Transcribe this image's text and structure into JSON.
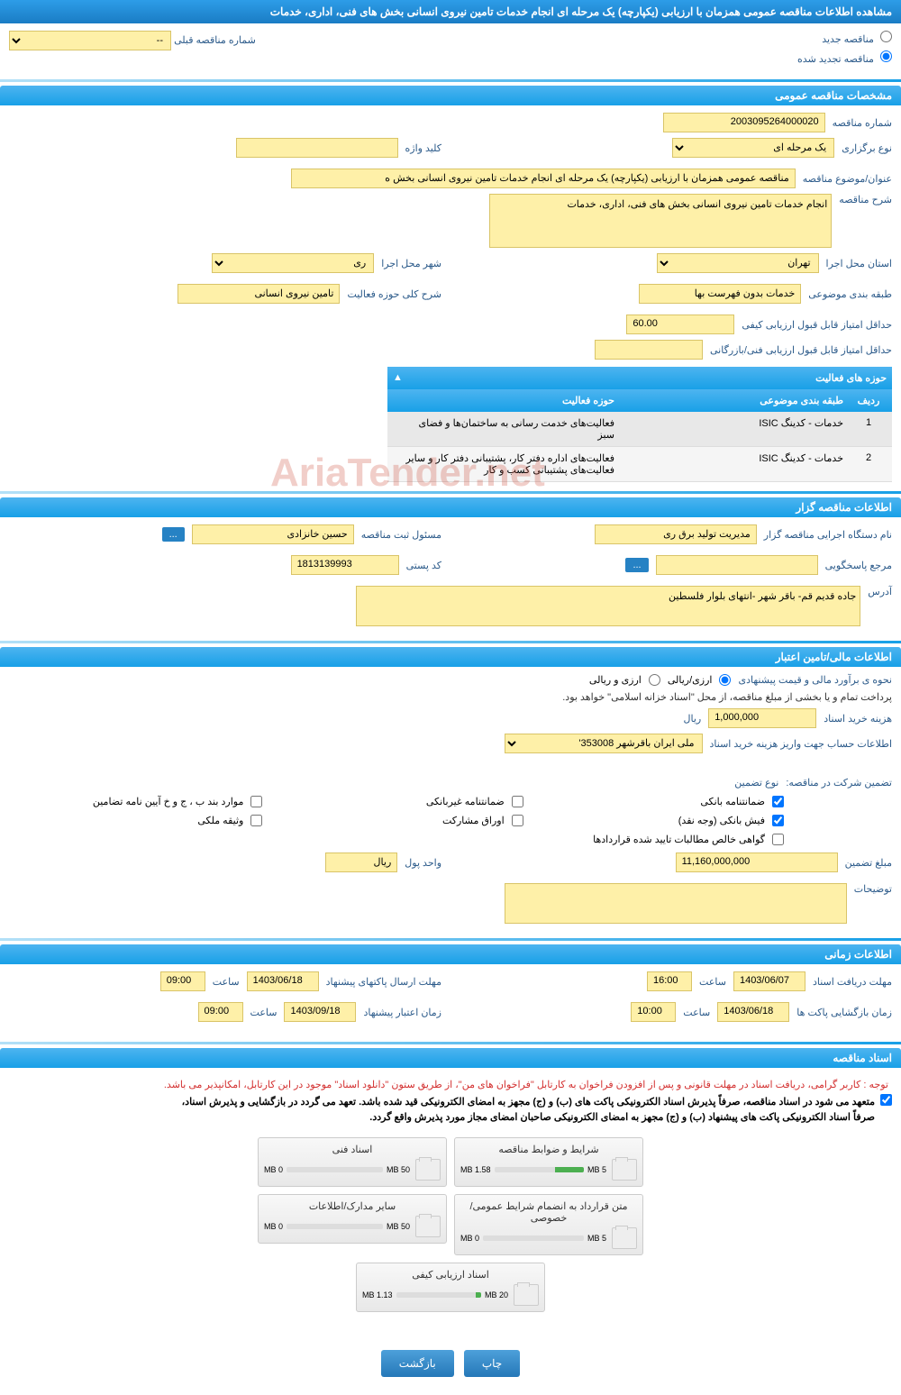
{
  "header": {
    "title": "مشاهده اطلاعات مناقصه عمومی همزمان با ارزیابی (یکپارچه) یک مرحله ای انجام خدمات تامین نیروی انسانی بخش های فنی، اداری، خدمات"
  },
  "radio_options": {
    "new_tender": "مناقصه جدید",
    "renewed_tender": "مناقصه تجدید شده",
    "prev_tender_label": "شماره مناقصه قبلی",
    "prev_tender_value": "--"
  },
  "sections": {
    "general": "مشخصات مناقصه عمومی",
    "activity_fields": "حوزه های فعالیت",
    "organizer": "اطلاعات مناقصه گزار",
    "financial": "اطلاعات مالی/تامین اعتبار",
    "timing": "اطلاعات زمانی",
    "documents": "اسناد مناقصه"
  },
  "general": {
    "tender_no_label": "شماره مناقصه",
    "tender_no": "2003095264000020",
    "type_label": "نوع برگزاری",
    "type_value": "یک مرحله ای",
    "keyword_label": "کلید واژه",
    "keyword_value": "",
    "subject_label": "عنوان/موضوع مناقصه",
    "subject_value": "مناقصه عمومی همزمان با ارزیابی (یکپارچه) یک مرحله ای انجام خدمات تامین نیروی انسانی بخش ه",
    "desc_label": "شرح مناقصه",
    "desc_value": "انجام خدمات تامین نیروی انسانی بخش های فنی، اداری، خدمات",
    "province_label": "استان محل اجرا",
    "province_value": "تهران",
    "city_label": "شهر محل اجرا",
    "city_value": "ری",
    "category_label": "طبقه بندی موضوعی",
    "category_value": "خدمات بدون فهرست بها",
    "activity_scope_label": "شرح کلی حوزه فعالیت",
    "activity_scope_value": "تامین نیروی انسانی",
    "min_quality_label": "حداقل امتیاز قابل قبول ارزیابی کیفی",
    "min_quality_value": "60.00",
    "min_tech_label": "حداقل امتیاز قابل قبول ارزیابی فنی/بازرگانی",
    "min_tech_value": ""
  },
  "activity_table": {
    "col_num": "ردیف",
    "col_category": "طبقه بندی موضوعی",
    "col_field": "حوزه فعالیت",
    "rows": [
      {
        "num": "1",
        "category": "خدمات - کدینگ ISIC",
        "field": "فعالیت‌های خدمت رسانی به ساختمان‌ها و فضای سبز"
      },
      {
        "num": "2",
        "category": "خدمات - کدینگ ISIC",
        "field": "فعالیت‌های  اداره دفتر کار، پشتیبانی دفتر کار و سایر فعالیت‌های پشتیبانی کسب و کار"
      }
    ]
  },
  "organizer": {
    "exec_name_label": "نام دستگاه اجرایی مناقصه گزار",
    "exec_name_value": "مدیریت تولید برق ری",
    "registrar_label": "مسئول ثبت مناقصه",
    "registrar_value": "حسین خانزادی",
    "btn_dots": "...",
    "response_ref_label": "مرجع پاسخگویی",
    "response_ref_value": "",
    "btn_dots2": "...",
    "postal_label": "کد پستی",
    "postal_value": "1813139993",
    "address_label": "آدرس",
    "address_value": "جاده قدیم قم- باقر شهر -انتهای بلوار فلسطین"
  },
  "financial": {
    "estimate_label": "نحوه ی برآورد مالی و قیمت پیشنهادی",
    "option_rial": "ارزی/ریالی",
    "option_currency": "ارزی و ریالی",
    "payment_note": "پرداخت تمام و یا بخشی از مبلغ مناقصه، از محل \"اسناد خزانه اسلامی\" خواهد بود.",
    "purchase_cost_label": "هزینه خرید اسناد",
    "purchase_cost_value": "1,000,000",
    "unit_rial": "ریال",
    "account_info_label": "اطلاعات حساب جهت واریز هزینه خرید اسناد",
    "account_info_value": "ملی ایران باقرشهر 353008'",
    "guarantee_label": "تضمین شرکت در مناقصه:",
    "guarantee_type_label": "نوع تضمین",
    "checkboxes": {
      "bank_guarantee": "ضمانتنامه بانکی",
      "nonbank_guarantee": "ضمانتنامه غیربانکی",
      "clauses": "موارد بند ب ، ج و خ آیین نامه تضامین",
      "bank_receipt": "فیش بانکی (وجه نقد)",
      "securities": "اوراق مشارکت",
      "property_deposit": "وثیقه ملکی",
      "confirmed_claims": "گواهی خالص مطالبات تایید شده قراردادها"
    },
    "guarantee_amount_label": "مبلغ تضمین",
    "guarantee_amount_value": "11,160,000,000",
    "currency_unit_label": "واحد پول",
    "currency_unit_value": "ریال",
    "notes_label": "توضیحات",
    "notes_value": ""
  },
  "timing": {
    "receive_deadline_label": "مهلت دریافت اسناد",
    "receive_deadline_date": "1403/06/07",
    "receive_deadline_time_label": "ساعت",
    "receive_deadline_time": "16:00",
    "send_deadline_label": "مهلت ارسال پاکتهای پیشنهاد",
    "send_deadline_date": "1403/06/18",
    "send_deadline_time_label": "ساعت",
    "send_deadline_time": "09:00",
    "opening_label": "زمان بازگشایی پاکت ها",
    "opening_date": "1403/06/18",
    "opening_time_label": "ساعت",
    "opening_time": "10:00",
    "validity_label": "زمان اعتبار پیشنهاد",
    "validity_date": "1403/09/18",
    "validity_time_label": "ساعت",
    "validity_time": "09:00"
  },
  "documents": {
    "notice_red": "توجه : کاربر گرامی، دریافت اسناد در مهلت قانونی و پس از افزودن فراخوان به کارتابل \"فراخوان های من\"، از طریق ستون \"دانلود اسناد\" موجود در این کارتابل، امکانپذیر می باشد.",
    "notice_black1": "متعهد می شود در اسناد مناقصه، صرفاً پذیرش اسناد الکترونیکی پاکت های (ب) و (ج) مجهز به امضای الکترونیکی قید شده باشد. تعهد می گردد در بازگشایی و پذیرش اسناد،",
    "notice_black2": "صرفاً اسناد الکترونیکی پاکت های پیشنهاد (ب) و (ج) مجهز به امضای الکترونیکی صاحبان امضای مجاز مورد پذیرش واقع گردد.",
    "files": [
      {
        "title": "شرایط و ضوابط مناقصه",
        "used": "1.58 MB",
        "total": "5 MB",
        "pct": 32
      },
      {
        "title": "اسناد فنی",
        "used": "0 MB",
        "total": "50 MB",
        "pct": 0
      },
      {
        "title": "متن قرارداد به انضمام شرایط عمومی/خصوصی",
        "used": "0 MB",
        "total": "5 MB",
        "pct": 0
      },
      {
        "title": "سایر مدارک/اطلاعات",
        "used": "0 MB",
        "total": "50 MB",
        "pct": 0
      },
      {
        "title": "اسناد ارزیابی کیفی",
        "used": "1.13 MB",
        "total": "20 MB",
        "pct": 6
      }
    ]
  },
  "footer": {
    "print": "چاپ",
    "back": "بازگشت"
  },
  "watermark": "AriaTender.net",
  "colors": {
    "header_bg": "#1a8ad4",
    "section_bg": "#18a0e7",
    "field_bg": "#fef0a8",
    "field_border": "#d9c468",
    "label_color": "#2b5a8a",
    "btn_bg": "#2578b8",
    "notice_red": "#d32f2f",
    "file_bar_fill": "#4caf50"
  }
}
